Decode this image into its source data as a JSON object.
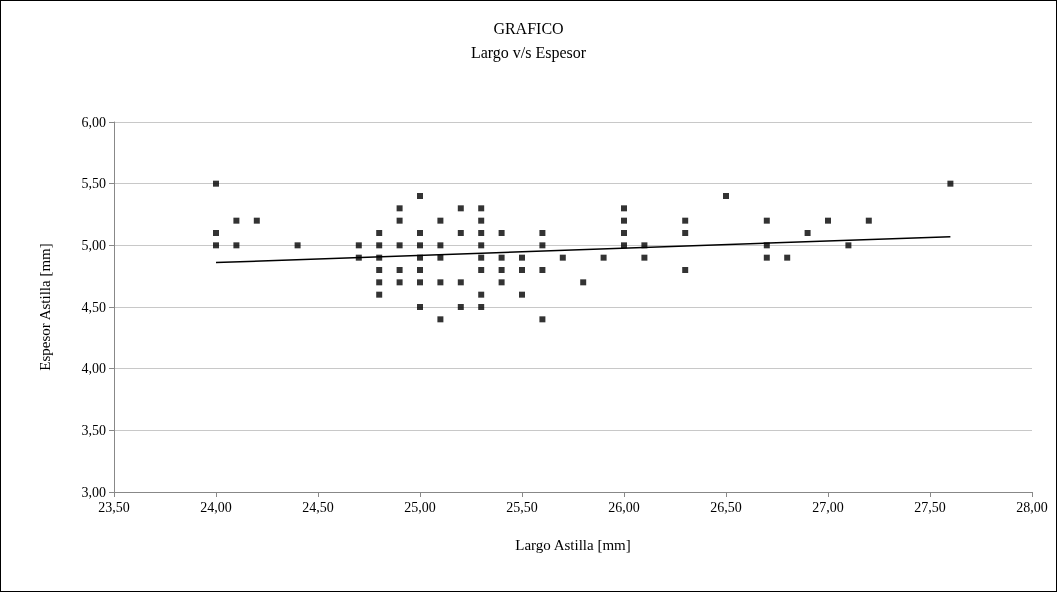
{
  "chart_data": {
    "type": "scatter",
    "title": "GRAFICO",
    "subtitle": "Largo v/s Espesor",
    "xlabel": "Largo Astilla [mm]",
    "ylabel": "Espesor Astilla [mm]",
    "xlim": [
      23.5,
      28
    ],
    "xticks": [
      {
        "value": 23.5,
        "label": "23,50"
      },
      {
        "value": 24,
        "label": "24,00"
      },
      {
        "value": 24.5,
        "label": "24,50"
      },
      {
        "value": 25,
        "label": "25,00"
      },
      {
        "value": 25.5,
        "label": "25,50"
      },
      {
        "value": 26,
        "label": "26,00"
      },
      {
        "value": 26.5,
        "label": "26,50"
      },
      {
        "value": 27,
        "label": "27,00"
      },
      {
        "value": 27.5,
        "label": "27,50"
      },
      {
        "value": 28,
        "label": "28,00"
      }
    ],
    "ylim": [
      3,
      6
    ],
    "yticks": [
      {
        "value": 3,
        "label": "3,00"
      },
      {
        "value": 3.5,
        "label": "3,50"
      },
      {
        "value": 4,
        "label": "4,00"
      },
      {
        "value": 4.5,
        "label": "4,50"
      },
      {
        "value": 5,
        "label": "5,00"
      },
      {
        "value": 5.5,
        "label": "5,50"
      },
      {
        "value": 6,
        "label": "6,00"
      }
    ],
    "grid": "y",
    "marker": "square",
    "series": [
      {
        "color": "#000000",
        "x": [
          24.0,
          24.0,
          24.0,
          24.1,
          24.1,
          24.2,
          24.4,
          24.7,
          24.7,
          24.8,
          24.8,
          24.8,
          24.8,
          24.8,
          24.8,
          24.9,
          24.9,
          24.9,
          24.9,
          24.9,
          25.0,
          25.0,
          25.0,
          25.0,
          25.0,
          25.0,
          25.0,
          25.1,
          25.1,
          25.1,
          25.1,
          25.1,
          25.2,
          25.2,
          25.2,
          25.2,
          25.3,
          25.3,
          25.3,
          25.3,
          25.3,
          25.3,
          25.3,
          25.3,
          25.4,
          25.4,
          25.4,
          25.4,
          25.5,
          25.5,
          25.5,
          25.6,
          25.6,
          25.6,
          25.6,
          25.7,
          25.8,
          25.9,
          26.0,
          26.0,
          26.0,
          26.0,
          26.1,
          26.1,
          26.3,
          26.3,
          26.3,
          26.5,
          26.7,
          26.7,
          26.7,
          26.8,
          26.9,
          27.0,
          27.1,
          27.2,
          27.6
        ],
        "values": [
          5.5,
          5.1,
          5.0,
          5.2,
          5.0,
          5.2,
          5.0,
          5.0,
          4.9,
          5.1,
          5.0,
          4.9,
          4.8,
          4.7,
          4.6,
          5.3,
          5.2,
          5.0,
          4.8,
          4.7,
          5.4,
          5.1,
          5.0,
          4.9,
          4.8,
          4.7,
          4.5,
          5.2,
          5.0,
          4.9,
          4.7,
          4.4,
          5.3,
          5.1,
          4.7,
          4.5,
          5.3,
          5.2,
          5.1,
          5.0,
          4.9,
          4.8,
          4.6,
          4.5,
          5.1,
          4.9,
          4.8,
          4.7,
          4.9,
          4.8,
          4.6,
          5.1,
          5.0,
          4.8,
          4.4,
          4.9,
          4.7,
          4.9,
          5.3,
          5.2,
          5.1,
          5.0,
          5.0,
          4.9,
          5.2,
          5.1,
          4.8,
          5.4,
          5.2,
          5.0,
          4.9,
          4.9,
          5.1,
          5.2,
          5.0,
          5.2,
          5.5
        ]
      },
      {
        "type": "line",
        "color": "#000000",
        "marker": "none",
        "line_style": "solid",
        "x": [
          24.0,
          27.6
        ],
        "values": [
          4.86,
          5.07
        ]
      }
    ]
  }
}
